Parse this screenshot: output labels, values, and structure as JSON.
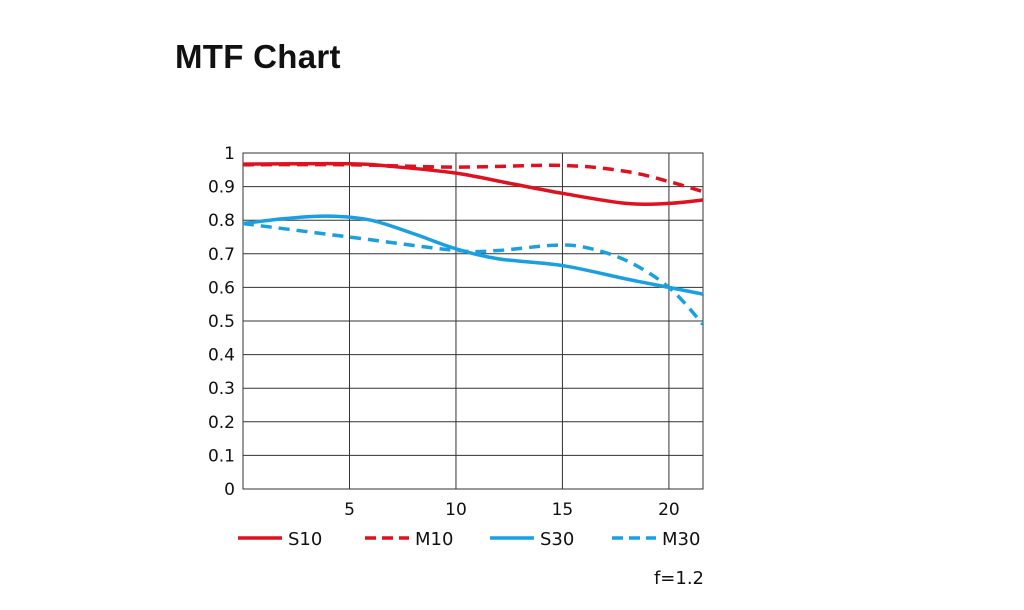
{
  "chart_data": {
    "type": "line",
    "title": "MTF Chart",
    "xlabel": "",
    "ylabel": "",
    "xlim": [
      0,
      21.6
    ],
    "ylim": [
      0,
      1
    ],
    "grid": true,
    "legend_placement": "bottom",
    "x_ticks": [
      5,
      10,
      15,
      20
    ],
    "y_ticks": [
      0,
      0.1,
      0.2,
      0.3,
      0.4,
      0.5,
      0.6,
      0.7,
      0.8,
      0.9,
      1
    ],
    "y_tick_labels": [
      "0",
      "0.1",
      "0.2",
      "0.3",
      "0.4",
      "0.5",
      "0.6",
      "0.7",
      "0.8",
      "0.9",
      "1"
    ],
    "annotation": "f=1.2",
    "series": [
      {
        "name": "S10",
        "color": "#e0101e",
        "dashed": false,
        "x": [
          0,
          5,
          7,
          10,
          12.5,
          15,
          18,
          20,
          21.6
        ],
        "y": [
          0.967,
          0.968,
          0.96,
          0.94,
          0.91,
          0.88,
          0.85,
          0.85,
          0.86
        ]
      },
      {
        "name": "M10",
        "color": "#e0101e",
        "dashed": true,
        "x": [
          0,
          5,
          10,
          15,
          18,
          20,
          21.6
        ],
        "y": [
          0.965,
          0.965,
          0.958,
          0.963,
          0.945,
          0.915,
          0.885
        ]
      },
      {
        "name": "S30",
        "color": "#1a9fe0",
        "dashed": false,
        "x": [
          0,
          2,
          4,
          6,
          8,
          10,
          12,
          15,
          18,
          20,
          21.6
        ],
        "y": [
          0.79,
          0.805,
          0.812,
          0.8,
          0.76,
          0.715,
          0.685,
          0.665,
          0.625,
          0.6,
          0.58
        ]
      },
      {
        "name": "M30",
        "color": "#1a9fe0",
        "dashed": true,
        "x": [
          0,
          5,
          10,
          12,
          14.5,
          16,
          18,
          20,
          21.6
        ],
        "y": [
          0.79,
          0.75,
          0.71,
          0.71,
          0.725,
          0.72,
          0.68,
          0.6,
          0.49
        ]
      }
    ]
  }
}
